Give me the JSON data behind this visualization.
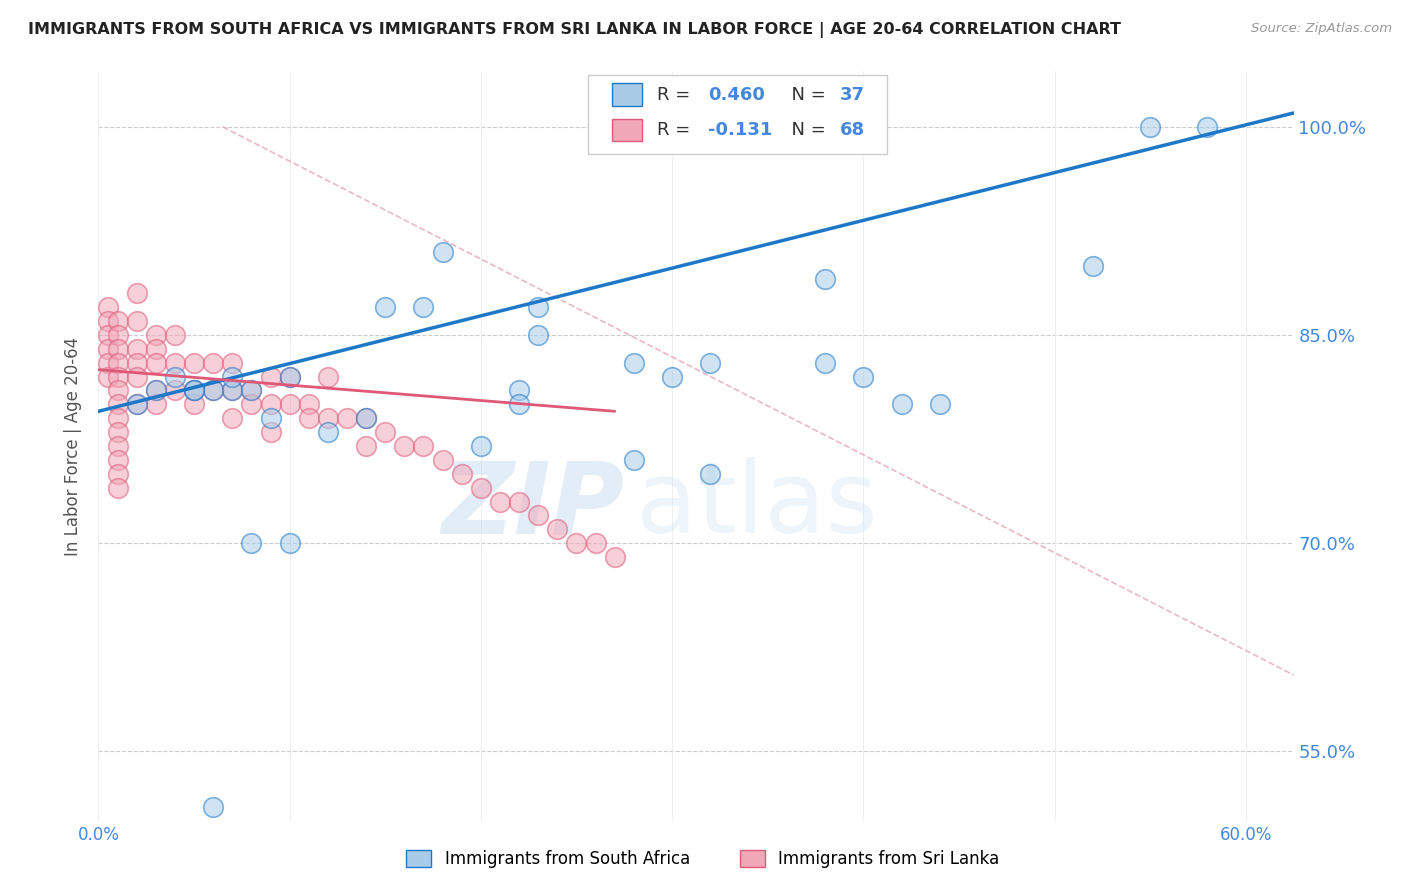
{
  "title": "IMMIGRANTS FROM SOUTH AFRICA VS IMMIGRANTS FROM SRI LANKA IN LABOR FORCE | AGE 20-64 CORRELATION CHART",
  "source": "Source: ZipAtlas.com",
  "ylabel": "In Labor Force | Age 20-64",
  "xlim": [
    0.0,
    0.625
  ],
  "ylim": [
    0.5,
    1.04
  ],
  "xticks": [
    0.0,
    0.1,
    0.2,
    0.3,
    0.4,
    0.5,
    0.6
  ],
  "xticklabels": [
    "0.0%",
    "",
    "",
    "",
    "",
    "",
    "60.0%"
  ],
  "ytick_positions": [
    0.55,
    0.7,
    0.85,
    1.0
  ],
  "ytick_labels": [
    "55.0%",
    "70.0%",
    "85.0%",
    "100.0%"
  ],
  "legend_r1": "0.460",
  "legend_n1": "37",
  "legend_r2": "-0.131",
  "legend_n2": "68",
  "color_sa": "#a8cce8",
  "color_sl": "#f0a8b8",
  "color_line_sa": "#1e78c8",
  "color_line_sl": "#e05878",
  "color_diag": "#e8b0bc",
  "watermark_zip": "ZIP",
  "watermark_atlas": "atlas",
  "legend_label_sa": "Immigrants from South Africa",
  "legend_label_sl": "Immigrants from Sri Lanka",
  "sa_x": [
    0.02,
    0.18,
    0.23,
    0.17,
    0.22,
    0.15,
    0.23,
    0.28,
    0.22,
    0.32,
    0.38,
    0.38,
    0.3,
    0.4,
    0.42,
    0.44,
    0.52,
    0.55,
    0.06,
    0.1,
    0.1,
    0.08,
    0.07,
    0.05,
    0.03,
    0.06,
    0.07,
    0.04,
    0.05,
    0.08,
    0.09,
    0.12,
    0.14,
    0.2,
    0.28,
    0.32,
    0.58
  ],
  "sa_y": [
    0.8,
    0.91,
    0.87,
    0.87,
    0.81,
    0.87,
    0.85,
    0.83,
    0.8,
    0.83,
    0.89,
    0.83,
    0.82,
    0.82,
    0.8,
    0.8,
    0.9,
    1.0,
    0.51,
    0.82,
    0.7,
    0.7,
    0.81,
    0.81,
    0.81,
    0.81,
    0.82,
    0.82,
    0.81,
    0.81,
    0.79,
    0.78,
    0.79,
    0.77,
    0.76,
    0.75,
    1.0
  ],
  "sl_x": [
    0.005,
    0.005,
    0.005,
    0.005,
    0.005,
    0.005,
    0.01,
    0.01,
    0.01,
    0.01,
    0.01,
    0.01,
    0.01,
    0.01,
    0.01,
    0.01,
    0.01,
    0.01,
    0.01,
    0.02,
    0.02,
    0.02,
    0.02,
    0.02,
    0.02,
    0.03,
    0.03,
    0.03,
    0.03,
    0.03,
    0.04,
    0.04,
    0.04,
    0.05,
    0.05,
    0.05,
    0.06,
    0.06,
    0.07,
    0.07,
    0.07,
    0.08,
    0.08,
    0.09,
    0.09,
    0.09,
    0.1,
    0.1,
    0.11,
    0.11,
    0.12,
    0.12,
    0.13,
    0.14,
    0.14,
    0.15,
    0.16,
    0.17,
    0.18,
    0.19,
    0.2,
    0.21,
    0.22,
    0.23,
    0.24,
    0.25,
    0.26,
    0.27
  ],
  "sl_y": [
    0.87,
    0.86,
    0.85,
    0.84,
    0.83,
    0.82,
    0.86,
    0.85,
    0.84,
    0.83,
    0.82,
    0.81,
    0.8,
    0.79,
    0.78,
    0.77,
    0.76,
    0.75,
    0.74,
    0.88,
    0.86,
    0.84,
    0.83,
    0.82,
    0.8,
    0.85,
    0.84,
    0.83,
    0.81,
    0.8,
    0.85,
    0.83,
    0.81,
    0.83,
    0.81,
    0.8,
    0.83,
    0.81,
    0.83,
    0.81,
    0.79,
    0.81,
    0.8,
    0.82,
    0.8,
    0.78,
    0.82,
    0.8,
    0.8,
    0.79,
    0.82,
    0.79,
    0.79,
    0.79,
    0.77,
    0.78,
    0.77,
    0.77,
    0.76,
    0.75,
    0.74,
    0.73,
    0.73,
    0.72,
    0.71,
    0.7,
    0.7,
    0.69
  ],
  "blue_line_x": [
    0.0,
    0.625
  ],
  "blue_line_y": [
    0.795,
    1.01
  ],
  "pink_line_x": [
    0.0,
    0.27
  ],
  "pink_line_y": [
    0.825,
    0.795
  ],
  "diag_line_x": [
    0.065,
    0.625
  ],
  "diag_line_y": [
    1.0,
    0.605
  ]
}
